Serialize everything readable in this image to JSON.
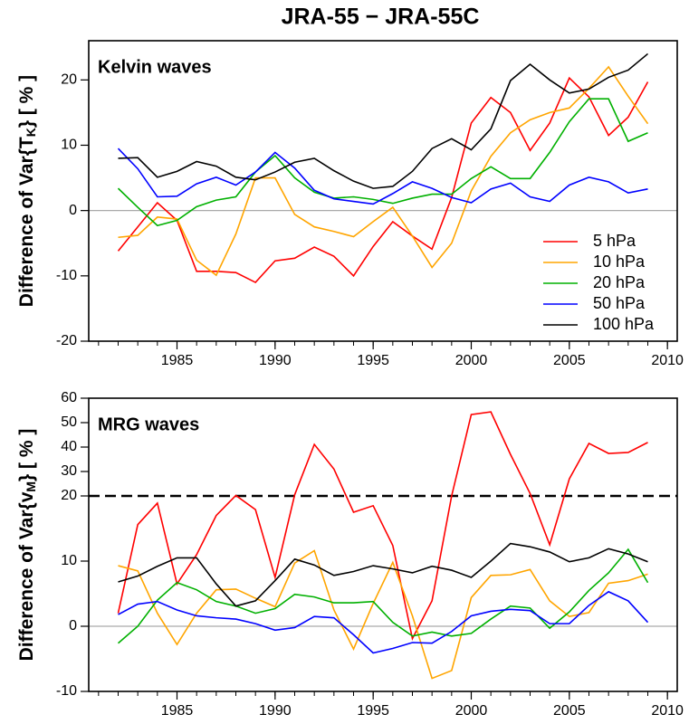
{
  "title": "JRA-55 − JRA-55C",
  "chart_data": [
    {
      "type": "line",
      "panel_label": "Kelvin waves",
      "ylabel": [
        "Difference of Var{T",
        "K",
        "}  [ % ]"
      ],
      "x": [
        1982,
        1983,
        1984,
        1985,
        1986,
        1987,
        1988,
        1989,
        1990,
        1991,
        1992,
        1993,
        1994,
        1995,
        1996,
        1997,
        1998,
        1999,
        2000,
        2001,
        2002,
        2003,
        2004,
        2005,
        2006,
        2007,
        2008,
        2009
      ],
      "xlim": [
        1980.5,
        2010.5
      ],
      "xticks": [
        1985,
        1990,
        1995,
        2000,
        2005,
        2010
      ],
      "ylim": [
        -20,
        26
      ],
      "yticks": [
        -20,
        -10,
        0,
        10,
        20
      ],
      "hline": 0,
      "legend": "lower right",
      "series": [
        {
          "name": "5 hPa",
          "color": "#ff0000",
          "values": [
            -6.2,
            -2.5,
            1.2,
            -1.5,
            -9.3,
            -9.3,
            -9.5,
            -11,
            -7.7,
            -7.3,
            -5.6,
            -7,
            -10,
            -5.5,
            -1.7,
            -3.9,
            -5.9,
            2,
            13.4,
            17.3,
            15,
            9.2,
            13.4,
            20.3,
            17.4,
            11.5,
            14.3,
            19.7
          ]
        },
        {
          "name": "10 hPa",
          "color": "#ffa500",
          "values": [
            -4.1,
            -3.8,
            -1,
            -1.3,
            -7.6,
            -9.9,
            -3.6,
            5,
            5,
            -0.6,
            -2.5,
            -3.2,
            -4,
            -1.7,
            0.5,
            -3.9,
            -8.7,
            -5,
            3,
            8.3,
            11.9,
            13.9,
            15,
            15.7,
            18.7,
            22,
            17.5,
            13.3
          ]
        },
        {
          "name": "20 hPa",
          "color": "#00b000",
          "values": [
            3.4,
            0.5,
            -2.3,
            -1.5,
            0.6,
            1.6,
            2.1,
            5.9,
            8.4,
            5,
            2.8,
            1.9,
            2.1,
            1.7,
            1.1,
            1.9,
            2.5,
            2.5,
            4.9,
            6.7,
            4.9,
            4.9,
            8.9,
            13.6,
            17.1,
            17.1,
            10.6,
            11.9
          ]
        },
        {
          "name": "50 hPa",
          "color": "#0000ff",
          "values": [
            9.5,
            6.4,
            2.1,
            2.2,
            4.1,
            5.1,
            3.9,
            5.9,
            8.9,
            6.5,
            3.1,
            1.8,
            1.4,
            1,
            2.6,
            4.4,
            3.4,
            2,
            1.2,
            3.3,
            4.2,
            2.1,
            1.4,
            3.9,
            5.1,
            4.4,
            2.7,
            3.3
          ]
        },
        {
          "name": "100 hPa",
          "color": "#000000",
          "values": [
            8,
            8.1,
            5.1,
            6,
            7.5,
            6.8,
            5.1,
            4.7,
            5.9,
            7.4,
            8,
            6.1,
            4.5,
            3.4,
            3.7,
            6,
            9.5,
            11,
            9.3,
            12.5,
            19.9,
            22.4,
            20,
            18,
            18.6,
            20.4,
            21.5,
            24
          ]
        }
      ]
    },
    {
      "type": "line",
      "panel_label": "MRG waves",
      "ylabel": [
        "Difference of Var{v",
        "M",
        "}  [ % ]"
      ],
      "x": [
        1982,
        1983,
        1984,
        1985,
        1986,
        1987,
        1988,
        1989,
        1990,
        1991,
        1992,
        1993,
        1994,
        1995,
        1996,
        1997,
        1998,
        1999,
        2000,
        2001,
        2002,
        2003,
        2004,
        2005,
        2006,
        2007,
        2008,
        2009
      ],
      "xlim": [
        1980.5,
        2010.5
      ],
      "xticks": [
        1985,
        1990,
        1995,
        2000,
        2005,
        2010
      ],
      "ylim": [
        -10,
        60
      ],
      "yticks": [
        -10,
        0,
        10,
        20,
        30,
        40,
        50,
        60
      ],
      "ybreak": 20,
      "hline": 0,
      "series": [
        {
          "color": "#ff0000",
          "values": [
            2,
            15.6,
            18.9,
            6.5,
            11,
            17,
            20.2,
            17.9,
            7.5,
            20.5,
            41.1,
            31,
            17.5,
            18.5,
            12.4,
            -1.9,
            3.9,
            20,
            53.3,
            54.4,
            37,
            21,
            12.5,
            27,
            41.5,
            37.4,
            37.8,
            41.9
          ]
        },
        {
          "color": "#ffa500",
          "values": [
            9.3,
            8.5,
            2,
            -2.8,
            2,
            5.6,
            5.7,
            4.3,
            3,
            9.7,
            11.6,
            2.5,
            -3.5,
            3.5,
            9.8,
            1.6,
            -8,
            -6.8,
            4.4,
            7.8,
            7.9,
            8.7,
            3.9,
            1.5,
            2.1,
            6.6,
            7,
            8
          ]
        },
        {
          "color": "#00b000",
          "values": [
            -2.6,
            0,
            4,
            6.7,
            5.6,
            3.8,
            3.1,
            2,
            2.7,
            4.9,
            4.5,
            3.6,
            3.6,
            3.8,
            0.6,
            -1.5,
            -0.9,
            -1.5,
            -1.1,
            1.1,
            3.1,
            2.8,
            -0.3,
            2.2,
            5.5,
            8.2,
            11.8,
            6.7
          ]
        },
        {
          "color": "#0000ff",
          "values": [
            1.8,
            3.4,
            3.8,
            2.5,
            1.6,
            1.3,
            1.1,
            0.4,
            -0.6,
            -0.2,
            1.5,
            1.3,
            -1.3,
            -4.1,
            -3.4,
            -2.5,
            -2.6,
            -0.8,
            1.6,
            2.3,
            2.6,
            2.4,
            0.4,
            0.4,
            3.2,
            5.3,
            3.9,
            0.6
          ]
        },
        {
          "color": "#000000",
          "values": [
            6.8,
            7.7,
            9.2,
            10.5,
            10.5,
            6.5,
            3.1,
            3.9,
            7,
            10.3,
            9.4,
            7.8,
            8.4,
            9.3,
            8.8,
            8.2,
            9.2,
            8.6,
            7.5,
            10,
            12.7,
            12.2,
            11.4,
            9.9,
            10.5,
            11.9,
            11.1,
            9.9
          ]
        }
      ]
    }
  ]
}
